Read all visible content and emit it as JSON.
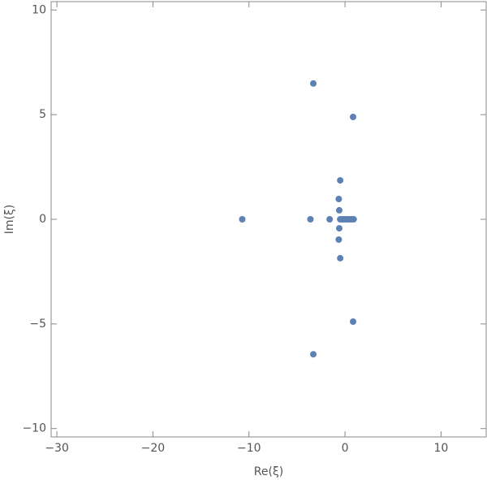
{
  "chart_data": {
    "type": "scatter",
    "x_label": "Re(ξ)",
    "y_label": "Im(ξ)",
    "color": "#5e81b5",
    "xlim": [
      -30.6,
      14.7
    ],
    "ylim": [
      -10.4,
      10.4
    ],
    "xticks": [
      {
        "value": -30,
        "label": "−30"
      },
      {
        "value": -20,
        "label": "−20"
      },
      {
        "value": -10,
        "label": "−10"
      },
      0,
      10
    ],
    "yticks": [
      {
        "value": -10,
        "label": "−10"
      },
      {
        "value": -5,
        "label": "−5"
      },
      0,
      5,
      10
    ],
    "x": [
      -3.3,
      -3.3,
      0.84,
      0.84,
      -0.5,
      -0.5,
      -0.65,
      -0.65,
      -0.6,
      -0.6,
      -10.7,
      -3.6,
      -1.6,
      -0.5,
      -0.3,
      -0.1,
      0.1,
      0.3,
      0.5,
      0.7,
      0.9
    ],
    "values": [
      6.49,
      -6.45,
      4.89,
      -4.89,
      1.86,
      -1.86,
      0.97,
      -0.97,
      0.43,
      -0.43,
      0,
      0,
      0,
      0,
      0,
      0,
      0,
      0,
      0,
      0,
      0
    ]
  }
}
